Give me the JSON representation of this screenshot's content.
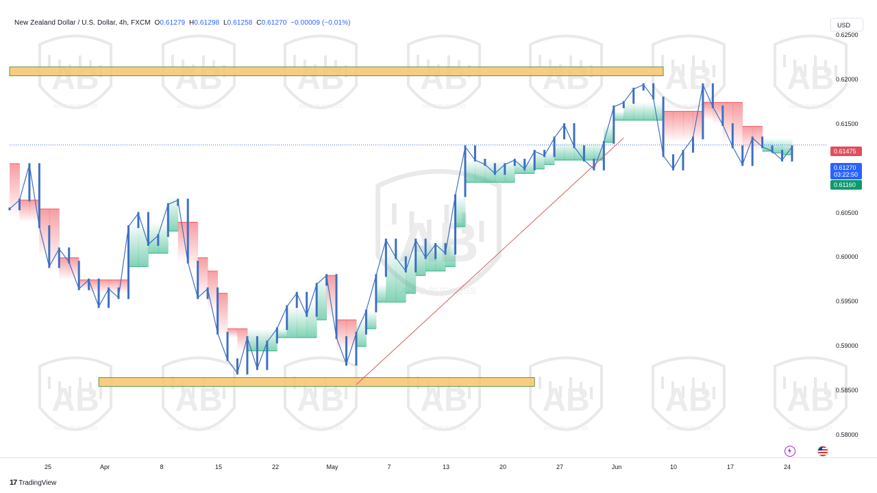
{
  "header": {
    "symbol": "New Zealand Dollar / U.S. Dollar, 4h, FXCM",
    "open_label": "O",
    "open": "0.61279",
    "high_label": "H",
    "high": "0.61298",
    "low_label": "L",
    "low": "0.61258",
    "close_label": "C",
    "close": "0.61270",
    "change": "−0.00009 (−0.01%)"
  },
  "currency_button": "USD",
  "price_tags": {
    "resistance_level": "0.61475",
    "last_price": "0.61270",
    "countdown": "03:22:50",
    "support_level": "0.61160"
  },
  "footer": {
    "brand": "TradingView"
  },
  "watermark_text": "ARAB BUSINESS",
  "colors": {
    "candle": "#3d6fc2",
    "cloud_red": "#f15b62",
    "cloud_green": "#2fb584",
    "zone": "#f7c46c",
    "trendline": "#d75a5a"
  },
  "icons": [
    "flash-icon",
    "us-flag-icon",
    "tradingview-logo-icon"
  ],
  "chart_data": {
    "type": "line",
    "ylim": [
      0.5775,
      0.6275
    ],
    "y_ticks": [
      "0.62500",
      "0.62000",
      "0.61500",
      "0.61000",
      "0.60500",
      "0.60000",
      "0.59500",
      "0.59000",
      "0.58500",
      "0.58000"
    ],
    "x_ticks": [
      "25",
      "Apr",
      "8",
      "15",
      "22",
      "May",
      "7",
      "13",
      "20",
      "27",
      "Jun",
      "10",
      "17",
      "24"
    ],
    "series": [
      {
        "values": [
          0.6055,
          0.6065,
          0.6105,
          0.6035,
          0.599,
          0.601,
          0.5995,
          0.5965,
          0.5975,
          0.5945,
          0.5965,
          0.5955,
          0.6035,
          0.605,
          0.6015,
          0.6025,
          0.606,
          0.6065,
          0.5995,
          0.5955,
          0.5965,
          0.5915,
          0.5885,
          0.587,
          0.591,
          0.5875,
          0.5905,
          0.592,
          0.5945,
          0.596,
          0.5935,
          0.597,
          0.598,
          0.591,
          0.588,
          0.5915,
          0.594,
          0.598,
          0.602,
          0.6,
          0.5985,
          0.602,
          0.6,
          0.6015,
          0.6005,
          0.607,
          0.6125,
          0.611,
          0.6105,
          0.6095,
          0.6105,
          0.611,
          0.61,
          0.612,
          0.6115,
          0.6135,
          0.615,
          0.6125,
          0.611,
          0.61,
          0.613,
          0.617,
          0.6175,
          0.619,
          0.6195,
          0.618,
          0.6115,
          0.61,
          0.612,
          0.6135,
          0.6195,
          0.617,
          0.615,
          0.6125,
          0.6105,
          0.6135,
          0.6125,
          0.612,
          0.611,
          0.6125
        ]
      }
    ],
    "cloud_upper": [
      0.6106,
      0.6065,
      0.6065,
      0.6055,
      0.6055,
      0.6,
      0.6,
      0.5975,
      0.5975,
      0.5975,
      0.5975,
      0.5975,
      0.604,
      0.604,
      0.604,
      0.604,
      0.607,
      0.604,
      0.604,
      0.6,
      0.5985,
      0.596,
      0.592,
      0.592,
      0.592,
      0.592,
      0.592,
      0.592,
      0.5945,
      0.5945,
      0.595,
      0.598,
      0.598,
      0.593,
      0.593,
      0.593,
      0.594,
      0.597,
      0.601,
      0.601,
      0.601,
      0.602,
      0.602,
      0.602,
      0.602,
      0.607,
      0.611,
      0.611,
      0.611,
      0.611,
      0.611,
      0.611,
      0.611,
      0.612,
      0.612,
      0.613,
      0.613,
      0.613,
      0.613,
      0.613,
      0.615,
      0.6165,
      0.6175,
      0.6175,
      0.6175,
      0.6175,
      0.6165,
      0.6165,
      0.6165,
      0.6165,
      0.6175,
      0.6175,
      0.6175,
      0.6175,
      0.6148,
      0.6148,
      0.6135,
      0.6135,
      0.6135,
      0.6135
    ],
    "cloud_lower": [
      0.6045,
      0.604,
      0.604,
      0.6,
      0.599,
      0.5975,
      0.5975,
      0.5965,
      0.596,
      0.596,
      0.596,
      0.596,
      0.599,
      0.599,
      0.6005,
      0.6005,
      0.603,
      0.5995,
      0.5985,
      0.5955,
      0.594,
      0.591,
      0.591,
      0.5895,
      0.5895,
      0.5895,
      0.5895,
      0.591,
      0.591,
      0.591,
      0.591,
      0.593,
      0.593,
      0.5895,
      0.5895,
      0.59,
      0.592,
      0.595,
      0.595,
      0.595,
      0.596,
      0.598,
      0.5985,
      0.5985,
      0.599,
      0.6035,
      0.6085,
      0.6085,
      0.6085,
      0.6085,
      0.6085,
      0.6095,
      0.6095,
      0.61,
      0.6105,
      0.611,
      0.611,
      0.611,
      0.611,
      0.611,
      0.613,
      0.6155,
      0.6155,
      0.6155,
      0.6155,
      0.6155,
      0.613,
      0.613,
      0.613,
      0.613,
      0.6155,
      0.615,
      0.613,
      0.612,
      0.612,
      0.612,
      0.612,
      0.6118,
      0.6116,
      0.6116
    ],
    "cloud_state": [
      "red",
      "red",
      "red",
      "red",
      "red",
      "red",
      "red",
      "red",
      "red",
      "red",
      "red",
      "red",
      "green",
      "green",
      "green",
      "green",
      "green",
      "red",
      "red",
      "red",
      "red",
      "red",
      "red",
      "red",
      "green",
      "green",
      "green",
      "green",
      "green",
      "green",
      "green",
      "green",
      "red",
      "red",
      "red",
      "green",
      "green",
      "green",
      "green",
      "green",
      "green",
      "green",
      "green",
      "green",
      "green",
      "green",
      "green",
      "green",
      "green",
      "green",
      "green",
      "green",
      "green",
      "green",
      "green",
      "green",
      "green",
      "green",
      "green",
      "green",
      "green",
      "green",
      "green",
      "green",
      "green",
      "green",
      "red",
      "red",
      "red",
      "red",
      "red",
      "red",
      "red",
      "red",
      "red",
      "red",
      "green",
      "green",
      "green",
      "green"
    ],
    "zones": [
      {
        "from_index": 0,
        "to_index": 66,
        "low": 0.6205,
        "high": 0.6215
      },
      {
        "from_index": 9,
        "to_index": 53,
        "low": 0.5855,
        "high": 0.5865
      }
    ],
    "trendline": {
      "from_index": 35,
      "from_value": 0.5857,
      "to_index": 62,
      "to_value": 0.6135
    },
    "last_price": 0.6127,
    "grid": false
  }
}
